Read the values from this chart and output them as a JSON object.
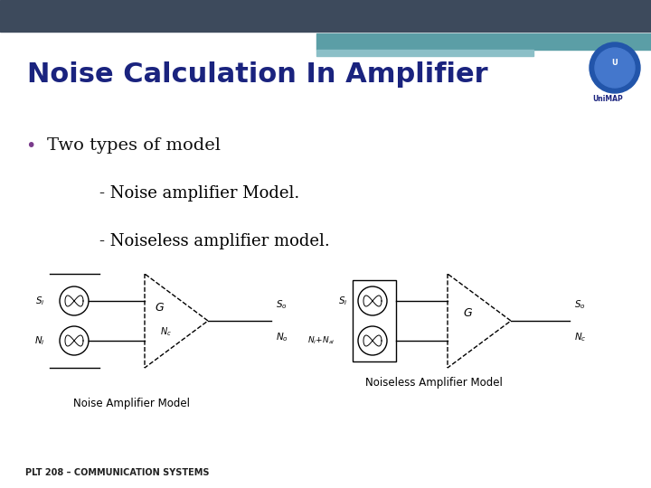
{
  "title": "Noise Calculation In Amplifier",
  "title_color": "#1a237e",
  "bullet_text": "Two types of model",
  "sub1": "- Noise amplifier Model.",
  "sub2": "- Noiseless amplifier model.",
  "footer": "PLT 208 – COMMUNICATION SYSTEMS",
  "bg_color": "#ffffff",
  "header_dark_color": "#3d4a5c",
  "header_teal_color": "#5b9ea6",
  "header_light_teal": "#8bbfc7",
  "diagram_label1": "Noise Amplifier Model",
  "diagram_label2": "Noiseless Amplifier Model",
  "fig_width": 7.2,
  "fig_height": 5.4
}
